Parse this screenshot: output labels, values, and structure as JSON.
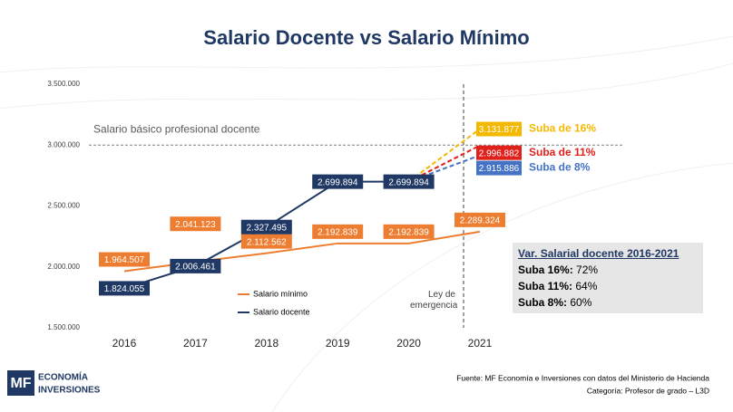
{
  "title": "Salario Docente vs Salario Mínimo",
  "chart_data": {
    "type": "line",
    "categories": [
      "2016",
      "2017",
      "2018",
      "2019",
      "2020",
      "2021"
    ],
    "series": [
      {
        "name": "Salario mínimo",
        "color": "#ed7d31",
        "values": [
          1964507,
          2041123,
          2112562,
          2192839,
          2192839,
          2289324
        ],
        "value_labels": [
          "1.964.507",
          "2.041.123",
          "2.112.562",
          "2.192.839",
          "2.192.839",
          "2.289.324"
        ]
      },
      {
        "name": "Salario docente",
        "color": "#1f3864",
        "values": [
          1824055,
          2006461,
          2327495,
          2699894,
          2699894,
          null
        ],
        "value_labels": [
          "1.824.055",
          "2.006.461",
          "2.327.495",
          "2.699.894",
          "2.699.894",
          null
        ]
      }
    ],
    "projections": [
      {
        "name": "Suba de 16%",
        "color": "#f5b800",
        "value": 3131877,
        "value_label": "3.131.877"
      },
      {
        "name": "Suba de 11%",
        "color": "#e0201b",
        "value": 2996882,
        "value_label": "2.996.882"
      },
      {
        "name": "Suba de 8%",
        "color": "#4472c4",
        "value": 2915886,
        "value_label": "2.915.886"
      }
    ],
    "ylim": [
      1500000,
      3500000
    ],
    "yticks": [
      {
        "value": 1500000,
        "label": "1.500.000"
      },
      {
        "value": 2000000,
        "label": "2.000.000"
      },
      {
        "value": 2500000,
        "label": "2.500.000"
      },
      {
        "value": 3000000,
        "label": "3.000.000"
      },
      {
        "value": 3500000,
        "label": "3.500.000"
      }
    ],
    "reference_line": {
      "value": 3000000,
      "label": "Salario básico profesional docente"
    },
    "event_label": "Ley de emergencia"
  },
  "summary": {
    "title": "Var. Salarial docente 2016-2021",
    "rows": [
      [
        "Suba 16%:",
        "72%"
      ],
      [
        "Suba 11%:",
        "64%"
      ],
      [
        "Suba 8%:",
        "60%"
      ]
    ]
  },
  "footer": [
    "Fuente: MF Economía e Inversiones con datos del Ministerio de Hacienda",
    "Categoría: Profesor de grado – L3D"
  ],
  "logo": {
    "mark": "MF",
    "lines": [
      "ECONOMÍA",
      "INVERSIONES"
    ]
  }
}
